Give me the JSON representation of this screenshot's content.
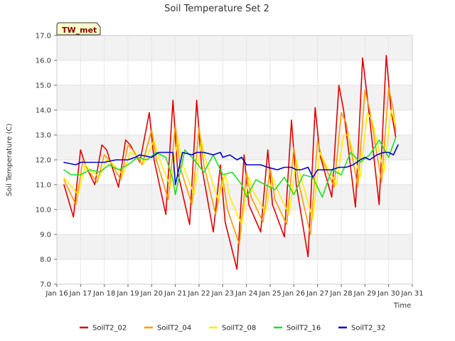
{
  "chart_data": {
    "type": "line",
    "title": "Soil Temperature Set 2",
    "xlabel": "Time",
    "ylabel": "Soil Temperature (C)",
    "station_tag": "TW_met",
    "xlim": [
      16,
      31
    ],
    "ylim": [
      7.0,
      17.0
    ],
    "x_ticks": [
      16,
      17,
      18,
      19,
      20,
      21,
      22,
      23,
      24,
      25,
      26,
      27,
      28,
      29,
      30,
      31
    ],
    "x_tick_labels": [
      "Jan 16",
      "Jan 17",
      "Jan 18",
      "Jan 19",
      "Jan 20",
      "Jan 21",
      "Jan 22",
      "Jan 23",
      "Jan 24",
      "Jan 25",
      "Jan 26",
      "Jan 27",
      "Jan 28",
      "Jan 29",
      "Jan 30",
      "Jan 31"
    ],
    "y_ticks": [
      7.0,
      8.0,
      9.0,
      10.0,
      11.0,
      12.0,
      13.0,
      14.0,
      15.0,
      16.0,
      17.0
    ],
    "y_tick_labels": [
      "7.0",
      "8.0",
      "9.0",
      "10.0",
      "11.0",
      "12.0",
      "13.0",
      "14.0",
      "15.0",
      "16.0",
      "17.0"
    ],
    "grid": true,
    "legend_position": "bottom",
    "colors": {
      "SoilT2_02": "#dd0000",
      "SoilT2_04": "#ff9900",
      "SoilT2_08": "#ffee00",
      "SoilT2_16": "#22dd22",
      "SoilT2_32": "#0000cc"
    },
    "series": [
      {
        "name": "SoilT2_02",
        "x": [
          16.3,
          16.7,
          17.0,
          17.2,
          17.6,
          17.9,
          18.1,
          18.6,
          18.9,
          19.1,
          19.5,
          19.9,
          20.1,
          20.6,
          20.9,
          21.1,
          21.6,
          21.9,
          22.1,
          22.6,
          22.9,
          23.1,
          23.6,
          23.9,
          24.1,
          24.6,
          24.9,
          25.1,
          25.6,
          25.9,
          26.1,
          26.6,
          26.9,
          27.1,
          27.6,
          27.9,
          28.1,
          28.6,
          28.9,
          29.1,
          29.6,
          29.9,
          30.1,
          30.3
        ],
        "y": [
          11.0,
          9.7,
          12.4,
          11.8,
          11.0,
          12.6,
          12.4,
          10.9,
          12.8,
          12.6,
          11.9,
          13.9,
          12.0,
          9.8,
          14.4,
          11.5,
          9.4,
          14.4,
          11.8,
          9.1,
          11.8,
          9.5,
          7.6,
          12.2,
          10.2,
          9.1,
          12.4,
          10.2,
          8.9,
          13.6,
          11.0,
          8.1,
          14.1,
          12.2,
          10.5,
          15.0,
          14.0,
          10.1,
          16.1,
          14.5,
          10.2,
          16.2,
          14.0,
          12.9
        ]
      },
      {
        "name": "SoilT2_04",
        "x": [
          16.3,
          16.8,
          17.1,
          17.3,
          17.7,
          18.0,
          18.2,
          18.7,
          19.0,
          19.2,
          19.6,
          20.0,
          20.2,
          20.7,
          21.0,
          21.2,
          21.7,
          22.0,
          22.2,
          22.7,
          23.0,
          23.2,
          23.7,
          24.0,
          24.2,
          24.7,
          25.0,
          25.2,
          25.7,
          26.0,
          26.2,
          26.7,
          27.0,
          27.2,
          27.7,
          28.0,
          28.2,
          28.7,
          29.0,
          29.2,
          29.7,
          30.0,
          30.2,
          30.3
        ],
        "y": [
          11.2,
          10.2,
          12.0,
          11.6,
          11.1,
          12.2,
          12.0,
          11.2,
          12.6,
          12.4,
          11.8,
          13.2,
          12.0,
          10.4,
          13.4,
          11.7,
          10.2,
          13.3,
          11.8,
          9.8,
          11.3,
          10.0,
          8.6,
          11.5,
          10.5,
          9.5,
          11.7,
          10.4,
          9.4,
          12.5,
          11.1,
          9.0,
          12.8,
          12.0,
          10.9,
          13.9,
          13.5,
          10.9,
          14.8,
          14.0,
          11.1,
          14.9,
          14.0,
          13.1
        ]
      },
      {
        "name": "SoilT2_08",
        "x": [
          16.3,
          16.9,
          17.2,
          17.4,
          17.8,
          18.1,
          18.3,
          18.8,
          19.1,
          19.3,
          19.7,
          20.1,
          20.3,
          20.8,
          21.1,
          21.3,
          21.8,
          22.1,
          22.3,
          22.8,
          23.1,
          23.3,
          23.8,
          24.1,
          24.3,
          24.8,
          25.1,
          25.3,
          25.8,
          26.1,
          26.3,
          26.8,
          27.1,
          27.3,
          27.8,
          28.1,
          28.3,
          28.8,
          29.1,
          29.3,
          29.8,
          30.1,
          30.3
        ],
        "y": [
          11.3,
          10.6,
          11.8,
          11.6,
          11.3,
          12.0,
          11.9,
          11.4,
          12.3,
          12.2,
          11.9,
          12.8,
          12.1,
          10.9,
          12.9,
          11.8,
          10.6,
          12.8,
          11.9,
          10.4,
          11.4,
          10.5,
          9.4,
          11.3,
          10.7,
          9.9,
          11.3,
          10.8,
          9.8,
          12.0,
          11.3,
          9.6,
          12.3,
          11.9,
          11.0,
          13.0,
          13.0,
          11.3,
          13.9,
          13.6,
          11.5,
          14.0,
          13.4
        ]
      },
      {
        "name": "SoilT2_16",
        "x": [
          16.3,
          16.6,
          17.0,
          17.4,
          17.8,
          18.2,
          18.6,
          19.0,
          19.4,
          19.8,
          20.2,
          20.6,
          20.9,
          21.0,
          21.4,
          21.8,
          22.2,
          22.6,
          23.0,
          23.4,
          23.8,
          24.0,
          24.4,
          24.8,
          25.2,
          25.6,
          26.0,
          26.4,
          26.8,
          27.2,
          27.6,
          28.0,
          28.4,
          28.8,
          29.2,
          29.6,
          30.0,
          30.3
        ],
        "y": [
          11.6,
          11.4,
          11.4,
          11.6,
          11.5,
          11.8,
          11.6,
          11.8,
          12.1,
          12.0,
          12.3,
          12.1,
          11.2,
          10.6,
          12.4,
          12.0,
          11.5,
          12.2,
          11.4,
          11.5,
          11.0,
          10.5,
          11.2,
          11.0,
          10.8,
          11.3,
          10.6,
          11.4,
          11.3,
          10.5,
          11.6,
          11.4,
          12.3,
          11.9,
          12.2,
          12.8,
          12.1,
          12.9
        ]
      },
      {
        "name": "SoilT2_32",
        "x": [
          16.3,
          16.8,
          17.0,
          17.5,
          18.0,
          18.5,
          19.0,
          19.3,
          19.5,
          20.0,
          20.3,
          20.6,
          20.9,
          21.0,
          21.3,
          21.7,
          21.9,
          22.2,
          22.6,
          22.9,
          23.0,
          23.3,
          23.6,
          23.8,
          24.0,
          24.3,
          24.6,
          24.9,
          25.3,
          25.6,
          25.9,
          26.1,
          26.3,
          26.6,
          26.8,
          27.0,
          27.3,
          27.6,
          27.9,
          28.2,
          28.5,
          28.8,
          29.0,
          29.2,
          29.5,
          29.8,
          30.0,
          30.2,
          30.4
        ],
        "y": [
          11.9,
          11.8,
          11.9,
          11.9,
          11.9,
          12.0,
          12.0,
          12.1,
          12.2,
          12.1,
          12.3,
          12.3,
          12.3,
          11.0,
          12.3,
          12.2,
          12.3,
          12.3,
          12.2,
          12.3,
          12.1,
          12.2,
          12.0,
          12.1,
          11.8,
          11.8,
          11.8,
          11.7,
          11.6,
          11.7,
          11.7,
          11.6,
          11.6,
          11.7,
          11.3,
          11.6,
          11.6,
          11.6,
          11.7,
          11.7,
          11.8,
          12.0,
          12.1,
          12.0,
          12.2,
          12.3,
          12.3,
          12.2,
          12.6
        ]
      }
    ]
  }
}
